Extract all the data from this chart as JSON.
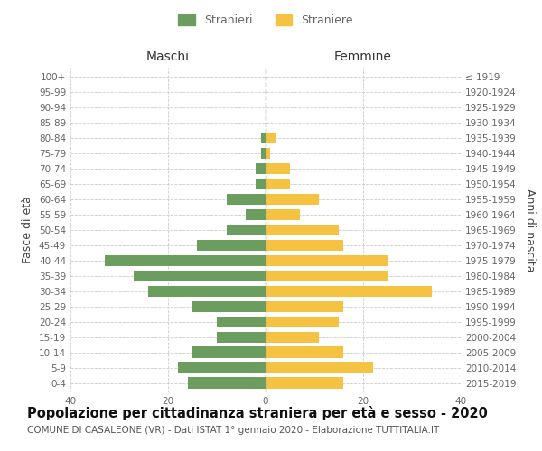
{
  "age_groups": [
    "0-4",
    "5-9",
    "10-14",
    "15-19",
    "20-24",
    "25-29",
    "30-34",
    "35-39",
    "40-44",
    "45-49",
    "50-54",
    "55-59",
    "60-64",
    "65-69",
    "70-74",
    "75-79",
    "80-84",
    "85-89",
    "90-94",
    "95-99",
    "100+"
  ],
  "birth_years": [
    "2015-2019",
    "2010-2014",
    "2005-2009",
    "2000-2004",
    "1995-1999",
    "1990-1994",
    "1985-1989",
    "1980-1984",
    "1975-1979",
    "1970-1974",
    "1965-1969",
    "1960-1964",
    "1955-1959",
    "1950-1954",
    "1945-1949",
    "1940-1944",
    "1935-1939",
    "1930-1934",
    "1925-1929",
    "1920-1924",
    "≤ 1919"
  ],
  "maschi": [
    16,
    18,
    15,
    10,
    10,
    15,
    24,
    27,
    33,
    14,
    8,
    4,
    8,
    2,
    2,
    1,
    1,
    0,
    0,
    0,
    0
  ],
  "femmine": [
    16,
    22,
    16,
    11,
    15,
    16,
    34,
    25,
    25,
    16,
    15,
    7,
    11,
    5,
    5,
    1,
    2,
    0,
    0,
    0,
    0
  ],
  "color_maschi": "#6b9e5e",
  "color_femmine": "#f5c242",
  "title": "Popolazione per cittadinanza straniera per età e sesso - 2020",
  "subtitle": "COMUNE DI CASALEONE (VR) - Dati ISTAT 1° gennaio 2020 - Elaborazione TUTTITALIA.IT",
  "xlabel_left": "Maschi",
  "xlabel_right": "Femmine",
  "ylabel_left": "Fasce di età",
  "ylabel_right": "Anni di nascita",
  "xlim": 40,
  "legend_maschi": "Stranieri",
  "legend_femmine": "Straniere",
  "bg_color": "#ffffff",
  "grid_color": "#cccccc",
  "text_color": "#666666",
  "title_fontsize": 10.5,
  "subtitle_fontsize": 7.5,
  "tick_fontsize": 7.5,
  "header_fontsize": 10,
  "ylabel_fontsize": 9,
  "legend_fontsize": 9
}
